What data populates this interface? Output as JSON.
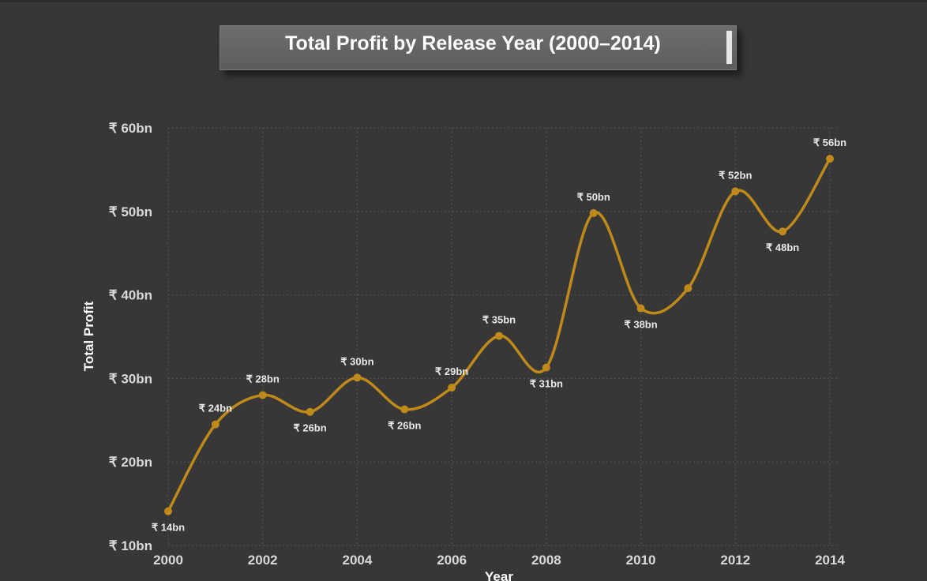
{
  "title": "Total Profit by Release Year (2000–2014)",
  "colors": {
    "background": "#373737",
    "line": "#c08a1a",
    "gridline": "#555555",
    "title_box": "#656565"
  },
  "chart_data": {
    "type": "line",
    "title": "Total Profit by Release Year (2000–2014)",
    "xlabel": "Year",
    "ylabel": "Total Profit",
    "x": [
      2000,
      2001,
      2002,
      2003,
      2004,
      2005,
      2006,
      2007,
      2008,
      2009,
      2010,
      2011,
      2012,
      2013,
      2014
    ],
    "series": [
      {
        "values": [
          14.1,
          24.5,
          28.0,
          26.0,
          30.1,
          26.3,
          28.9,
          35.1,
          31.3,
          49.8,
          38.4,
          40.8,
          52.4,
          47.6,
          56.3
        ]
      }
    ],
    "point_labels": [
      "₹ 14bn",
      "₹ 24bn",
      "₹ 28bn",
      "₹ 26bn",
      "₹ 30bn",
      "₹ 26bn",
      "₹ 29bn",
      "₹ 35bn",
      "₹ 31bn",
      "₹ 50bn",
      "₹ 38bn",
      "",
      "₹ 52bn",
      "₹ 48bn",
      "₹ 56bn"
    ],
    "label_position": [
      "below",
      "above",
      "above",
      "below",
      "above",
      "below",
      "above",
      "above",
      "below",
      "above",
      "below",
      "",
      "above",
      "below",
      "above"
    ],
    "xlim": [
      2000,
      2014
    ],
    "ylim": [
      10,
      60
    ],
    "x_ticks": [
      2000,
      2002,
      2004,
      2006,
      2008,
      2010,
      2012,
      2014
    ],
    "x_tick_labels": [
      "2000",
      "2002",
      "2004",
      "2006",
      "2008",
      "2010",
      "2012",
      "2014"
    ],
    "y_ticks": [
      10,
      20,
      30,
      40,
      50,
      60
    ],
    "y_tick_labels": [
      "₹ 10bn",
      "₹ 20bn",
      "₹ 30bn",
      "₹ 40bn",
      "₹ 50bn",
      "₹ 60bn"
    ],
    "grid": true,
    "smooth": true,
    "markers": true
  }
}
